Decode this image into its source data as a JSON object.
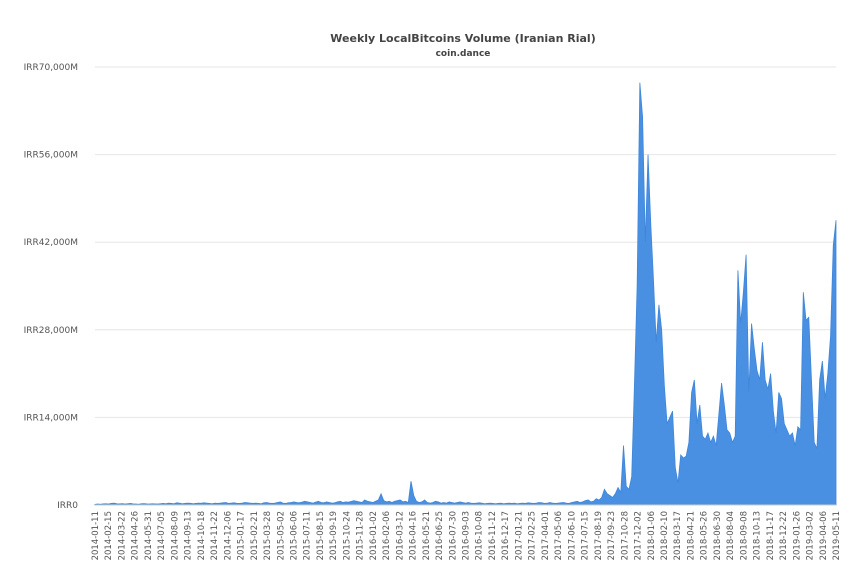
{
  "chart_data": {
    "type": "area",
    "title": "Weekly LocalBitcoins Volume (Iranian Rial)",
    "subtitle": "coin.dance",
    "ylim": [
      0,
      70000
    ],
    "yticks": [
      0,
      14000,
      28000,
      42000,
      56000,
      70000
    ],
    "ytick_labels": [
      "IRR0",
      "IRR14,000M",
      "IRR28,000M",
      "IRR42,000M",
      "IRR56,000M",
      "IRR70,000M"
    ],
    "xtick_labels": [
      "2014-01-11",
      "2014-02-15",
      "2014-03-22",
      "2014-04-26",
      "2014-05-31",
      "2014-07-05",
      "2014-08-09",
      "2014-09-13",
      "2014-10-18",
      "2014-11-22",
      "2014-12-06",
      "2015-01-17",
      "2015-02-21",
      "2015-03-28",
      "2015-05-02",
      "2015-06-06",
      "2015-07-11",
      "2015-08-15",
      "2015-09-19",
      "2015-10-24",
      "2015-11-28",
      "2016-01-02",
      "2016-02-06",
      "2016-03-12",
      "2016-04-16",
      "2016-05-21",
      "2016-06-25",
      "2016-07-30",
      "2016-09-03",
      "2016-10-08",
      "2016-11-12",
      "2016-12-17",
      "2017-01-21",
      "2017-02-25",
      "2017-04-01",
      "2017-05-06",
      "2017-06-10",
      "2017-07-15",
      "2017-08-19",
      "2017-09-23",
      "2017-10-28",
      "2017-12-02",
      "2018-01-06",
      "2018-02-10",
      "2018-03-17",
      "2018-04-21",
      "2018-05-26",
      "2018-06-30",
      "2018-08-04",
      "2018-09-08",
      "2018-10-13",
      "2018-11-17",
      "2018-12-22",
      "2019-01-26",
      "2019-03-02",
      "2019-04-06",
      "2019-05-11"
    ],
    "grid": true,
    "color": "#4a90e2",
    "series": [
      {
        "values": [
          100,
          150,
          120,
          180,
          200,
          150,
          250,
          300,
          200,
          180,
          220,
          150,
          200,
          250,
          180,
          150,
          120,
          200,
          220,
          180,
          160,
          200,
          180,
          150,
          200,
          250,
          200,
          300,
          250,
          200,
          350,
          300,
          200,
          250,
          300,
          280,
          200,
          250,
          300,
          280,
          350,
          300,
          250,
          200,
          300,
          250,
          300,
          350,
          400,
          250,
          300,
          350,
          280,
          250,
          300,
          400,
          350,
          300,
          250,
          300,
          250,
          200,
          350,
          400,
          300,
          250,
          300,
          400,
          500,
          300,
          250,
          350,
          400,
          500,
          400,
          350,
          450,
          600,
          500,
          400,
          300,
          450,
          600,
          400,
          350,
          500,
          400,
          300,
          350,
          500,
          600,
          400,
          500,
          450,
          550,
          700,
          600,
          500,
          400,
          800,
          600,
          500,
          400,
          600,
          800,
          1800,
          700,
          500,
          600,
          400,
          600,
          700,
          800,
          500,
          600,
          400,
          3800,
          1500,
          600,
          400,
          500,
          800,
          400,
          300,
          400,
          600,
          500,
          300,
          400,
          300,
          500,
          400,
          300,
          400,
          500,
          400,
          300,
          400,
          300,
          250,
          300,
          350,
          300,
          200,
          250,
          300,
          250,
          200,
          250,
          300,
          200,
          250,
          300,
          250,
          300,
          200,
          250,
          300,
          250,
          350,
          300,
          250,
          300,
          400,
          350,
          250,
          300,
          400,
          300,
          250,
          300,
          350,
          400,
          300,
          250,
          400,
          500,
          600,
          400,
          500,
          700,
          800,
          500,
          600,
          1000,
          800,
          1200,
          2500,
          1800,
          1500,
          1200,
          1800,
          2800,
          2000,
          9500,
          3000,
          2500,
          4500,
          19000,
          35000,
          67500,
          62000,
          42000,
          56000,
          45000,
          36000,
          26000,
          32000,
          28000,
          19000,
          13000,
          14000,
          15000,
          6000,
          3500,
          8000,
          7500,
          7800,
          10000,
          18000,
          20000,
          13000,
          16000,
          11000,
          10500,
          11500,
          10000,
          11000,
          9500,
          14500,
          19500,
          16000,
          12000,
          11500,
          10000,
          11000,
          37500,
          29000,
          34000,
          40000,
          18000,
          29000,
          25000,
          21500,
          20000,
          26000,
          20000,
          18500,
          21000,
          15000,
          11500,
          18000,
          17000,
          13000,
          12000,
          11000,
          11500,
          9500,
          12500,
          12000,
          34000,
          29500,
          30000,
          20000,
          10000,
          9000,
          20000,
          23000,
          17000,
          21000,
          27000,
          41500,
          45500
        ]
      }
    ]
  }
}
